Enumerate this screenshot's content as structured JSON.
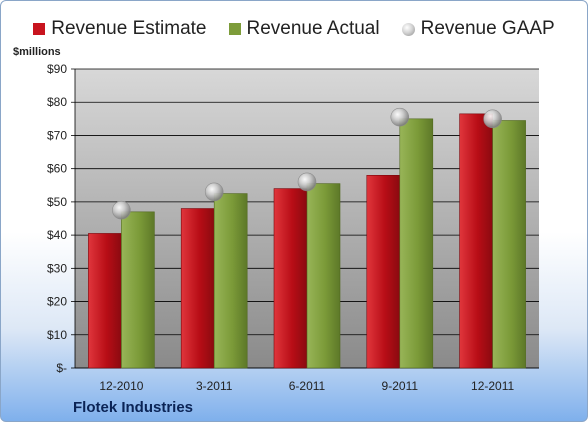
{
  "chart_data": {
    "type": "bar",
    "categories": [
      "12-2010",
      "3-2011",
      "6-2011",
      "9-2011",
      "12-2011"
    ],
    "series": [
      {
        "name": "Revenue Estimate",
        "kind": "bar",
        "color": "#c8141e",
        "values": [
          40.5,
          48,
          54,
          58,
          76.5
        ]
      },
      {
        "name": "Revenue Actual",
        "kind": "bar",
        "color": "#7d9c3a",
        "values": [
          47,
          52.5,
          55.5,
          75,
          74.5
        ]
      },
      {
        "name": "Revenue GAAP",
        "kind": "marker",
        "color": "#b0b0b0",
        "values": [
          47.5,
          53,
          56,
          75.5,
          75
        ]
      }
    ],
    "ylabel": "$millions",
    "ylim": [
      0,
      90
    ],
    "yticks": [
      0,
      10,
      20,
      30,
      40,
      50,
      60,
      70,
      80,
      90
    ],
    "ytick_labels": [
      "$-",
      "$10",
      "$20",
      "$30",
      "$40",
      "$50",
      "$60",
      "$70",
      "$80",
      "$90"
    ],
    "grid": true,
    "legend_position": "top",
    "caption": "Flotek Industries"
  },
  "colors": {
    "plot_top": "#d8d8d8",
    "plot_bottom": "#8a8a8a",
    "grid": "#000000"
  }
}
